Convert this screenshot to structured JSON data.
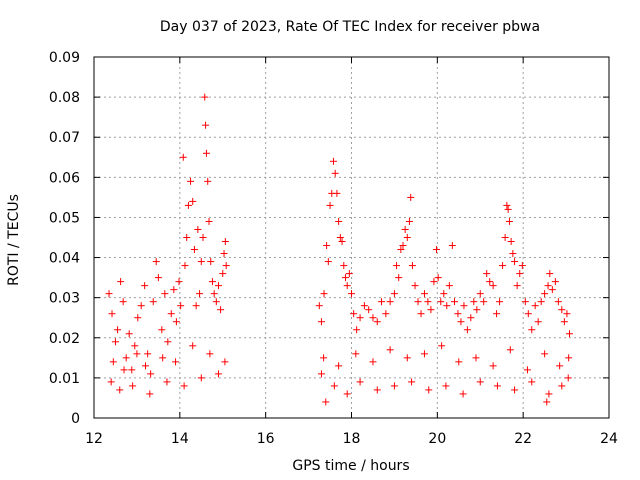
{
  "chart_data": {
    "type": "scatter",
    "title": "Day 037 of 2023, Rate Of TEC Index for receiver pbwa",
    "xlabel": "GPS time / hours",
    "ylabel": "ROTI / TECUs",
    "xlim": [
      12,
      24
    ],
    "ylim": [
      0,
      0.09
    ],
    "x_ticks": [
      12,
      14,
      16,
      18,
      20,
      22,
      24
    ],
    "x_tick_labels": [
      "12",
      "14",
      "16",
      "18",
      "20",
      "22",
      "24"
    ],
    "y_ticks": [
      0,
      0.01,
      0.02,
      0.03,
      0.04,
      0.05,
      0.06,
      0.07,
      0.08,
      0.09
    ],
    "y_tick_labels": [
      "0",
      "0.01",
      "0.02",
      "0.03",
      "0.04",
      "0.05",
      "0.06",
      "0.07",
      "0.08",
      "0.09"
    ],
    "grid": true,
    "marker": "+",
    "color": "#ff0000",
    "series": [
      {
        "name": "ROTI",
        "points": [
          [
            12.35,
            0.031
          ],
          [
            12.42,
            0.026
          ],
          [
            12.5,
            0.019
          ],
          [
            12.55,
            0.022
          ],
          [
            12.62,
            0.034
          ],
          [
            12.68,
            0.029
          ],
          [
            12.75,
            0.015
          ],
          [
            12.82,
            0.021
          ],
          [
            12.88,
            0.012
          ],
          [
            12.95,
            0.018
          ],
          [
            13.02,
            0.025
          ],
          [
            13.1,
            0.028
          ],
          [
            13.18,
            0.033
          ],
          [
            13.25,
            0.016
          ],
          [
            13.32,
            0.011
          ],
          [
            13.38,
            0.029
          ],
          [
            13.45,
            0.039
          ],
          [
            13.5,
            0.035
          ],
          [
            13.58,
            0.022
          ],
          [
            13.65,
            0.031
          ],
          [
            13.72,
            0.019
          ],
          [
            13.8,
            0.026
          ],
          [
            13.86,
            0.032
          ],
          [
            13.92,
            0.024
          ],
          [
            13.98,
            0.034
          ],
          [
            14.02,
            0.028
          ],
          [
            14.08,
            0.065
          ],
          [
            14.12,
            0.038
          ],
          [
            14.16,
            0.045
          ],
          [
            14.2,
            0.053
          ],
          [
            14.25,
            0.059
          ],
          [
            14.3,
            0.054
          ],
          [
            14.34,
            0.042
          ],
          [
            14.38,
            0.028
          ],
          [
            14.42,
            0.047
          ],
          [
            14.46,
            0.031
          ],
          [
            14.5,
            0.039
          ],
          [
            14.54,
            0.045
          ],
          [
            14.58,
            0.08
          ],
          [
            14.6,
            0.073
          ],
          [
            14.62,
            0.066
          ],
          [
            14.65,
            0.059
          ],
          [
            14.68,
            0.049
          ],
          [
            14.72,
            0.039
          ],
          [
            14.76,
            0.034
          ],
          [
            14.8,
            0.031
          ],
          [
            14.85,
            0.029
          ],
          [
            14.9,
            0.033
          ],
          [
            14.95,
            0.027
          ],
          [
            15.0,
            0.036
          ],
          [
            15.03,
            0.041
          ],
          [
            15.06,
            0.044
          ],
          [
            15.08,
            0.038
          ],
          [
            12.4,
            0.009
          ],
          [
            12.6,
            0.007
          ],
          [
            12.9,
            0.008
          ],
          [
            13.3,
            0.006
          ],
          [
            13.7,
            0.009
          ],
          [
            14.1,
            0.008
          ],
          [
            14.5,
            0.01
          ],
          [
            14.9,
            0.011
          ],
          [
            12.45,
            0.014
          ],
          [
            12.7,
            0.012
          ],
          [
            13.0,
            0.016
          ],
          [
            13.2,
            0.013
          ],
          [
            13.6,
            0.015
          ],
          [
            13.9,
            0.014
          ],
          [
            14.3,
            0.018
          ],
          [
            14.7,
            0.016
          ],
          [
            15.05,
            0.014
          ],
          [
            17.25,
            0.028
          ],
          [
            17.3,
            0.024
          ],
          [
            17.36,
            0.031
          ],
          [
            17.42,
            0.043
          ],
          [
            17.46,
            0.039
          ],
          [
            17.5,
            0.053
          ],
          [
            17.54,
            0.056
          ],
          [
            17.58,
            0.064
          ],
          [
            17.62,
            0.061
          ],
          [
            17.66,
            0.056
          ],
          [
            17.7,
            0.049
          ],
          [
            17.74,
            0.045
          ],
          [
            17.78,
            0.044
          ],
          [
            17.82,
            0.038
          ],
          [
            17.86,
            0.035
          ],
          [
            17.9,
            0.033
          ],
          [
            17.95,
            0.036
          ],
          [
            18.0,
            0.031
          ],
          [
            18.05,
            0.026
          ],
          [
            18.12,
            0.022
          ],
          [
            18.2,
            0.025
          ],
          [
            18.3,
            0.028
          ],
          [
            18.4,
            0.027
          ],
          [
            18.5,
            0.025
          ],
          [
            18.6,
            0.024
          ],
          [
            18.7,
            0.029
          ],
          [
            18.8,
            0.026
          ],
          [
            18.9,
            0.029
          ],
          [
            19.0,
            0.031
          ],
          [
            19.05,
            0.038
          ],
          [
            19.1,
            0.035
          ],
          [
            19.15,
            0.042
          ],
          [
            19.2,
            0.043
          ],
          [
            19.25,
            0.047
          ],
          [
            19.3,
            0.045
          ],
          [
            19.35,
            0.049
          ],
          [
            19.38,
            0.055
          ],
          [
            19.42,
            0.038
          ],
          [
            19.48,
            0.033
          ],
          [
            19.55,
            0.029
          ],
          [
            19.62,
            0.026
          ],
          [
            19.7,
            0.031
          ],
          [
            19.78,
            0.029
          ],
          [
            19.85,
            0.027
          ],
          [
            19.92,
            0.034
          ],
          [
            19.98,
            0.042
          ],
          [
            20.02,
            0.035
          ],
          [
            20.08,
            0.029
          ],
          [
            20.15,
            0.031
          ],
          [
            20.22,
            0.028
          ],
          [
            20.28,
            0.033
          ],
          [
            20.35,
            0.043
          ],
          [
            20.4,
            0.029
          ],
          [
            20.48,
            0.026
          ],
          [
            20.55,
            0.024
          ],
          [
            20.62,
            0.028
          ],
          [
            20.7,
            0.022
          ],
          [
            20.78,
            0.025
          ],
          [
            20.85,
            0.029
          ],
          [
            20.92,
            0.027
          ],
          [
            21.0,
            0.031
          ],
          [
            21.08,
            0.029
          ],
          [
            21.15,
            0.036
          ],
          [
            21.22,
            0.034
          ],
          [
            21.3,
            0.033
          ],
          [
            21.38,
            0.026
          ],
          [
            21.45,
            0.029
          ],
          [
            21.52,
            0.038
          ],
          [
            21.58,
            0.045
          ],
          [
            21.62,
            0.053
          ],
          [
            21.65,
            0.052
          ],
          [
            21.68,
            0.049
          ],
          [
            21.72,
            0.044
          ],
          [
            21.76,
            0.041
          ],
          [
            21.8,
            0.039
          ],
          [
            21.86,
            0.033
          ],
          [
            21.92,
            0.036
          ],
          [
            21.98,
            0.038
          ],
          [
            22.05,
            0.029
          ],
          [
            22.12,
            0.026
          ],
          [
            22.2,
            0.022
          ],
          [
            22.28,
            0.028
          ],
          [
            22.35,
            0.024
          ],
          [
            22.42,
            0.029
          ],
          [
            22.5,
            0.031
          ],
          [
            22.58,
            0.033
          ],
          [
            22.62,
            0.036
          ],
          [
            22.68,
            0.032
          ],
          [
            22.75,
            0.034
          ],
          [
            22.82,
            0.029
          ],
          [
            22.9,
            0.027
          ],
          [
            22.96,
            0.024
          ],
          [
            23.02,
            0.026
          ],
          [
            23.08,
            0.021
          ],
          [
            17.3,
            0.011
          ],
          [
            17.4,
            0.004
          ],
          [
            17.6,
            0.008
          ],
          [
            17.9,
            0.006
          ],
          [
            18.2,
            0.009
          ],
          [
            18.6,
            0.007
          ],
          [
            19.0,
            0.008
          ],
          [
            19.4,
            0.009
          ],
          [
            19.8,
            0.007
          ],
          [
            20.2,
            0.008
          ],
          [
            20.6,
            0.006
          ],
          [
            21.0,
            0.009
          ],
          [
            21.4,
            0.008
          ],
          [
            21.8,
            0.007
          ],
          [
            22.2,
            0.009
          ],
          [
            22.55,
            0.004
          ],
          [
            22.6,
            0.006
          ],
          [
            22.9,
            0.008
          ],
          [
            23.05,
            0.01
          ],
          [
            17.35,
            0.015
          ],
          [
            17.7,
            0.013
          ],
          [
            18.1,
            0.016
          ],
          [
            18.5,
            0.014
          ],
          [
            18.9,
            0.017
          ],
          [
            19.3,
            0.015
          ],
          [
            19.7,
            0.016
          ],
          [
            20.1,
            0.018
          ],
          [
            20.5,
            0.014
          ],
          [
            20.9,
            0.015
          ],
          [
            21.3,
            0.013
          ],
          [
            21.7,
            0.017
          ],
          [
            22.1,
            0.012
          ],
          [
            22.5,
            0.016
          ],
          [
            22.85,
            0.013
          ],
          [
            23.06,
            0.015
          ]
        ]
      }
    ]
  }
}
